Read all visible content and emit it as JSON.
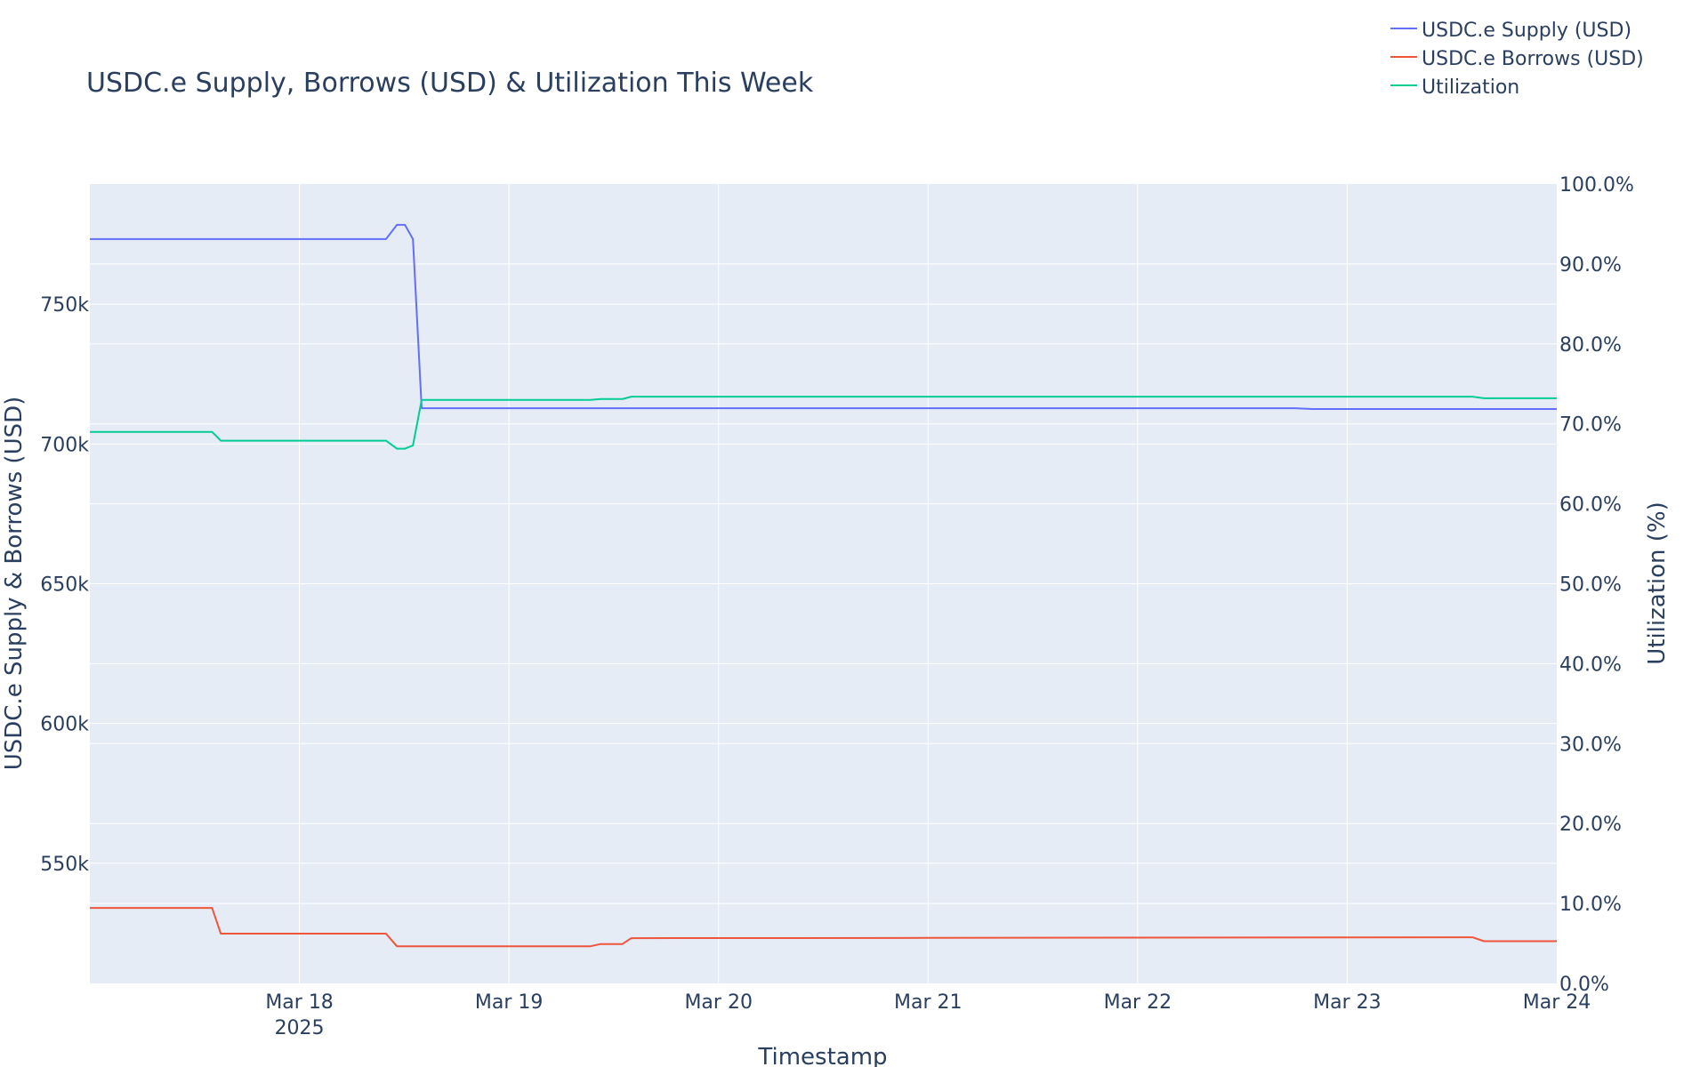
{
  "chart_data": {
    "type": "line",
    "title": "USDC.e Supply, Borrows (USD) & Utilization This Week",
    "xlabel": "Timestamp",
    "ylabel_left": "USDC.e Supply & Borrows (USD)",
    "ylabel_right": "Utilization (%)",
    "x_range": [
      "2025-03-17T00:00",
      "2025-03-24T00:00"
    ],
    "x_ticks": [
      {
        "t": "2025-03-18T00:00",
        "label": "Mar 18",
        "sublabel": "2025"
      },
      {
        "t": "2025-03-19T00:00",
        "label": "Mar 19",
        "sublabel": ""
      },
      {
        "t": "2025-03-20T00:00",
        "label": "Mar 20",
        "sublabel": ""
      },
      {
        "t": "2025-03-21T00:00",
        "label": "Mar 21",
        "sublabel": ""
      },
      {
        "t": "2025-03-22T00:00",
        "label": "Mar 22",
        "sublabel": ""
      },
      {
        "t": "2025-03-23T00:00",
        "label": "Mar 23",
        "sublabel": ""
      },
      {
        "t": "2025-03-24T00:00",
        "label": "Mar 24",
        "sublabel": ""
      }
    ],
    "y_left_range": [
      507000,
      793000
    ],
    "y_left_ticks": [
      {
        "v": 550000,
        "label": "550k"
      },
      {
        "v": 600000,
        "label": "600k"
      },
      {
        "v": 650000,
        "label": "650k"
      },
      {
        "v": 700000,
        "label": "700k"
      },
      {
        "v": 750000,
        "label": "750k"
      }
    ],
    "y_right_range": [
      0,
      100
    ],
    "y_right_ticks": [
      {
        "v": 0,
        "label": "0.0%"
      },
      {
        "v": 10,
        "label": "10.0%"
      },
      {
        "v": 20,
        "label": "20.0%"
      },
      {
        "v": 30,
        "label": "30.0%"
      },
      {
        "v": 40,
        "label": "40.0%"
      },
      {
        "v": 50,
        "label": "50.0%"
      },
      {
        "v": 60,
        "label": "60.0%"
      },
      {
        "v": 70,
        "label": "70.0%"
      },
      {
        "v": 80,
        "label": "80.0%"
      },
      {
        "v": 90,
        "label": "90.0%"
      },
      {
        "v": 100,
        "label": "100.0%"
      }
    ],
    "grid": true,
    "legend_position": "top-right",
    "plot_bg": "#e5ecf6",
    "series": [
      {
        "name": "USDC.e Supply (USD)",
        "axis": "left",
        "color": "#636efa",
        "points": [
          [
            "2025-03-17T00:00",
            773300
          ],
          [
            "2025-03-18T09:55",
            773300
          ],
          [
            "2025-03-18T11:10",
            778400
          ],
          [
            "2025-03-18T12:05",
            778400
          ],
          [
            "2025-03-18T13:00",
            773300
          ],
          [
            "2025-03-18T14:00",
            712800
          ],
          [
            "2025-03-22T18:00",
            712800
          ],
          [
            "2025-03-22T20:00",
            712500
          ],
          [
            "2025-03-24T00:00",
            712500
          ]
        ]
      },
      {
        "name": "USDC.e Borrows (USD)",
        "axis": "left",
        "color": "#ef553b",
        "points": [
          [
            "2025-03-17T00:00",
            534000
          ],
          [
            "2025-03-17T14:00",
            534000
          ],
          [
            "2025-03-17T15:00",
            524800
          ],
          [
            "2025-03-18T09:55",
            524800
          ],
          [
            "2025-03-18T11:10",
            520300
          ],
          [
            "2025-03-19T09:20",
            520300
          ],
          [
            "2025-03-19T10:30",
            521100
          ],
          [
            "2025-03-19T13:00",
            521100
          ],
          [
            "2025-03-19T14:00",
            523200
          ],
          [
            "2025-03-21T00:00",
            523300
          ],
          [
            "2025-03-23T14:20",
            523500
          ],
          [
            "2025-03-23T15:40",
            522100
          ],
          [
            "2025-03-24T00:00",
            522100
          ]
        ]
      },
      {
        "name": "Utilization",
        "axis": "right",
        "color": "#00cc96",
        "points": [
          [
            "2025-03-17T00:00",
            69.0
          ],
          [
            "2025-03-17T14:00",
            69.0
          ],
          [
            "2025-03-17T15:00",
            67.9
          ],
          [
            "2025-03-18T09:55",
            67.9
          ],
          [
            "2025-03-18T11:10",
            66.9
          ],
          [
            "2025-03-18T12:05",
            66.9
          ],
          [
            "2025-03-18T13:00",
            67.3
          ],
          [
            "2025-03-18T14:00",
            73.0
          ],
          [
            "2025-03-19T09:20",
            73.0
          ],
          [
            "2025-03-19T10:30",
            73.1
          ],
          [
            "2025-03-19T13:00",
            73.1
          ],
          [
            "2025-03-19T14:00",
            73.4
          ],
          [
            "2025-03-23T14:20",
            73.4
          ],
          [
            "2025-03-23T15:40",
            73.2
          ],
          [
            "2025-03-24T00:00",
            73.2
          ]
        ]
      }
    ]
  }
}
